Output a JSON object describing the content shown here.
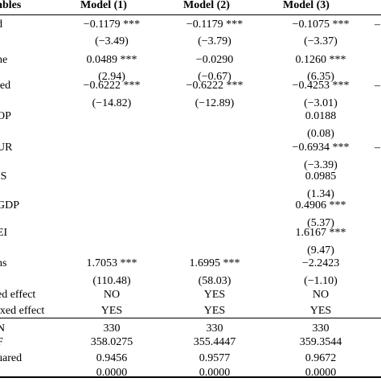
{
  "headers": {
    "label": "ables",
    "model1": "Model (1)",
    "model2": "Model (2)",
    "model3": "Model (3)"
  },
  "rows": [
    {
      "label": "d",
      "m1": "−0.1179 ***",
      "m2": "−0.1179 ***",
      "m3": "−0.1075 ***",
      "m4": "–"
    },
    {
      "label": "",
      "m1": "(−3.49)",
      "m2": "(−3.79)",
      "m3": "(−3.37)",
      "m4": ""
    },
    {
      "label": "ne",
      "m1": "0.0489 ***",
      "m2": "−0.0290",
      "m3": "0.1260 ***",
      "m4": ""
    },
    {
      "label": "",
      "m1": "(2.94)",
      "m2": "(−0.67)",
      "m3": "(6.35)",
      "m4": ""
    },
    {
      "label": "ted",
      "m1": "−0.6222 ***",
      "m2": "−0.6222 ***",
      "m3": "−0.4253 ***",
      "m4": "–"
    },
    {
      "label": "",
      "m1": "(−14.82)",
      "m2": "(−12.89)",
      "m3": "(−3.01)",
      "m4": ""
    },
    {
      "label": "OP",
      "m1": "",
      "m2": "",
      "m3": "0.0188",
      "m4": ""
    },
    {
      "label": "",
      "m1": "",
      "m2": "",
      "m3": "(0.08)",
      "m4": ""
    },
    {
      "label": "UR",
      "m1": "",
      "m2": "",
      "m3": "−0.6934 ***",
      "m4": "–"
    },
    {
      "label": "",
      "m1": "",
      "m2": "",
      "m3": "(−3.39)",
      "m4": ""
    },
    {
      "label": "IS",
      "m1": "",
      "m2": "",
      "m3": "0.0985",
      "m4": ""
    },
    {
      "label": "",
      "m1": "",
      "m2": "",
      "m3": "(1.34)",
      "m4": ""
    },
    {
      "label": "GDP",
      "m1": "",
      "m2": "",
      "m3": "0.4906 ***",
      "m4": ""
    },
    {
      "label": "",
      "m1": "",
      "m2": "",
      "m3": "(5.37)",
      "m4": ""
    },
    {
      "label": "EI",
      "m1": "",
      "m2": "",
      "m3": "1.6167 ***",
      "m4": ""
    },
    {
      "label": "",
      "m1": "",
      "m2": "",
      "m3": "(9.47)",
      "m4": ""
    },
    {
      "label": "ns",
      "m1": "1.7053 ***",
      "m2": "1.6995 ***",
      "m3": "−2.2423",
      "m4": ""
    },
    {
      "label": "",
      "m1": "(110.48)",
      "m2": "(58.03)",
      "m3": "(−1.10)",
      "m4": ""
    },
    {
      "label": "ed effect",
      "m1": "NO",
      "m2": "YES",
      "m3": "NO",
      "m4": ""
    },
    {
      "label": "ixed effect",
      "m1": "YES",
      "m2": "YES",
      "m3": "YES",
      "m4": ""
    },
    {
      "label": "N",
      "m1": "330",
      "m2": "330",
      "m3": "330",
      "m4": ""
    },
    {
      "label": "F",
      "m1": "358.0275",
      "m2": "355.4447",
      "m3": "359.3544",
      "m4": ""
    },
    {
      "label": "uared",
      "m1": "0.9456",
      "m2": "0.9577",
      "m3": "0.9672",
      "m4": ""
    },
    {
      "label": "",
      "m1": "0.0000",
      "m2": "0.0000",
      "m3": "0.0000",
      "m4": ""
    }
  ]
}
